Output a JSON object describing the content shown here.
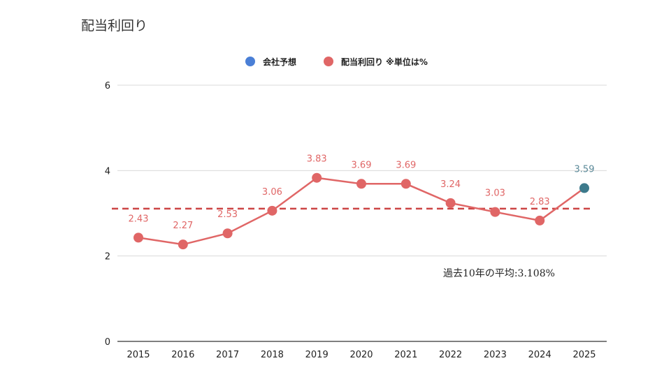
{
  "page": {
    "title": "配当利回り"
  },
  "chart_data": {
    "type": "line",
    "categories": [
      "2015",
      "2016",
      "2017",
      "2018",
      "2019",
      "2020",
      "2021",
      "2022",
      "2023",
      "2024",
      "2025"
    ],
    "series": [
      {
        "name": "会社予想",
        "color": "#4a7fd6",
        "values": [
          null,
          null,
          null,
          null,
          null,
          null,
          null,
          null,
          null,
          null,
          3.59
        ],
        "point_color": "#3d7a8c",
        "label_color": "#5b8a99"
      },
      {
        "name": "配当利回り ※単位は%",
        "color": "#e06666",
        "values": [
          2.43,
          2.27,
          2.53,
          3.06,
          3.83,
          3.69,
          3.69,
          3.24,
          3.03,
          2.83,
          3.59
        ]
      }
    ],
    "data_labels": [
      "2.43",
      "2.27",
      "2.53",
      "3.06",
      "3.83",
      "3.69",
      "3.69",
      "3.24",
      "3.03",
      "2.83",
      "3.59"
    ],
    "yticks": [
      "0",
      "2",
      "4",
      "6"
    ],
    "ylim": [
      0,
      6
    ],
    "grid": true,
    "legend_position": "top",
    "average_line": {
      "value": 3.108,
      "label": "過去10年の平均:3.108%",
      "color": "#cc4444"
    }
  }
}
